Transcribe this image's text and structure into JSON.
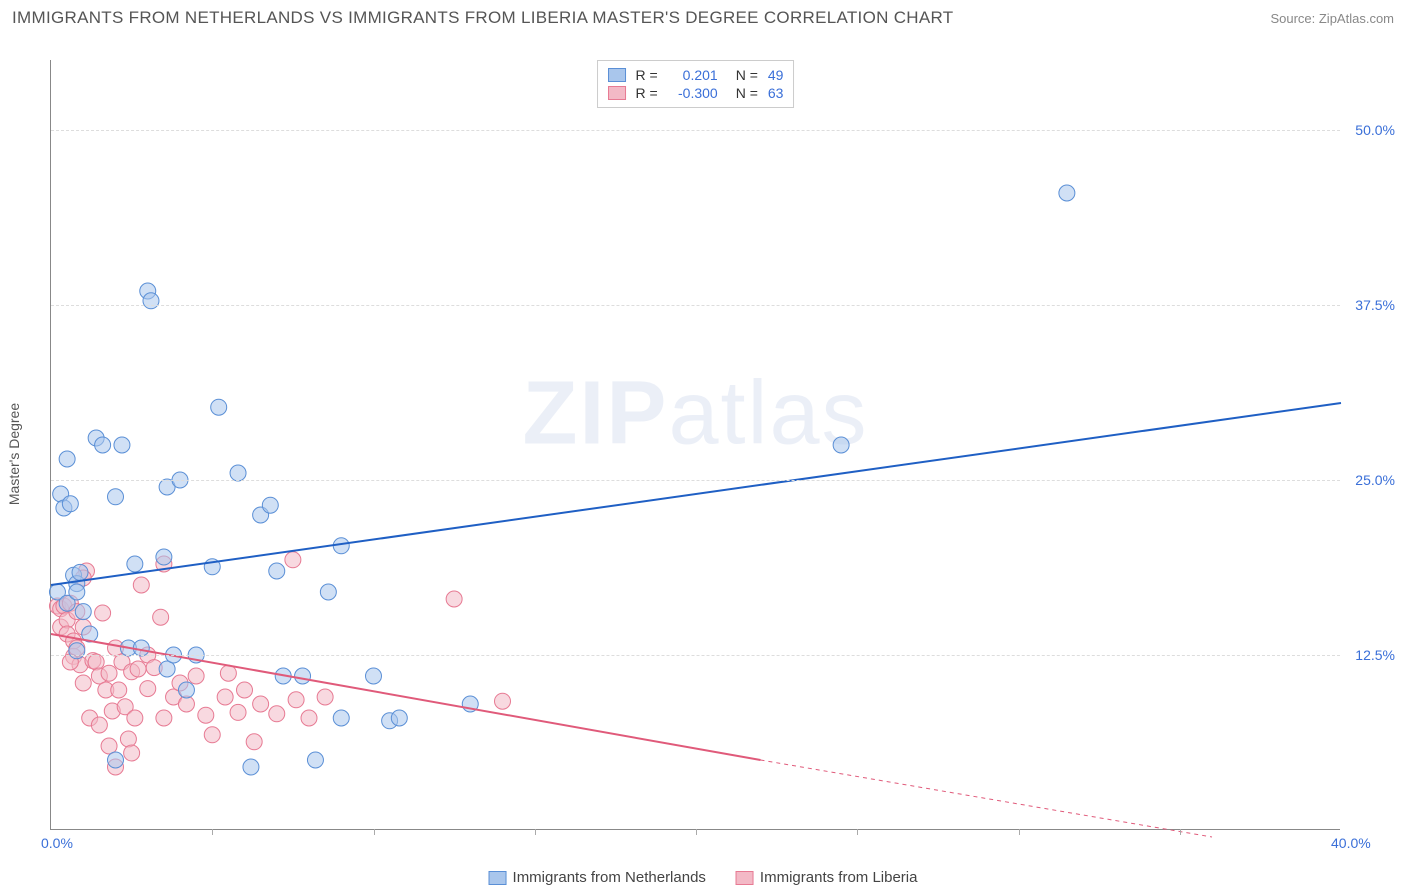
{
  "title": "IMMIGRANTS FROM NETHERLANDS VS IMMIGRANTS FROM LIBERIA MASTER'S DEGREE CORRELATION CHART",
  "source": "Source: ZipAtlas.com",
  "watermark_a": "ZIP",
  "watermark_b": "atlas",
  "ylabel": "Master's Degree",
  "chart": {
    "type": "scatter",
    "xlim": [
      0,
      40
    ],
    "ylim": [
      0,
      55
    ],
    "background_color": "#ffffff",
    "grid_color": "#dddddd",
    "axis_label_color": "#3a6fd8",
    "marker_radius": 8,
    "marker_opacity": 0.55,
    "line_width": 2,
    "xticks_labeled": [
      {
        "v": 0,
        "label": "0.0%"
      },
      {
        "v": 40,
        "label": "40.0%"
      }
    ],
    "xticks_minor": [
      5,
      10,
      15,
      20,
      25,
      30,
      35
    ],
    "yticks": [
      {
        "v": 12.5,
        "label": "12.5%"
      },
      {
        "v": 25,
        "label": "25.0%"
      },
      {
        "v": 37.5,
        "label": "37.5%"
      },
      {
        "v": 50,
        "label": "50.0%"
      }
    ],
    "series": {
      "netherlands": {
        "label": "Immigrants from Netherlands",
        "color_fill": "#a9c6ec",
        "color_stroke": "#5a8fd6",
        "line_color": "#1f5fc4",
        "R": "0.201",
        "N": "49",
        "points": [
          [
            0.2,
            17.0
          ],
          [
            0.3,
            24.0
          ],
          [
            0.4,
            23.0
          ],
          [
            0.5,
            26.5
          ],
          [
            0.5,
            16.2
          ],
          [
            0.6,
            23.3
          ],
          [
            0.7,
            18.2
          ],
          [
            0.8,
            17.6
          ],
          [
            0.8,
            17.0
          ],
          [
            0.9,
            18.4
          ],
          [
            1.0,
            15.6
          ],
          [
            1.2,
            14.0
          ],
          [
            1.4,
            28.0
          ],
          [
            1.6,
            27.5
          ],
          [
            2.0,
            23.8
          ],
          [
            2.2,
            27.5
          ],
          [
            2.4,
            13.0
          ],
          [
            2.6,
            19.0
          ],
          [
            2.8,
            13.0
          ],
          [
            3.0,
            38.5
          ],
          [
            3.1,
            37.8
          ],
          [
            3.5,
            19.5
          ],
          [
            3.6,
            24.5
          ],
          [
            3.6,
            11.5
          ],
          [
            3.8,
            12.5
          ],
          [
            4.0,
            25.0
          ],
          [
            4.2,
            10.0
          ],
          [
            4.5,
            12.5
          ],
          [
            5.0,
            18.8
          ],
          [
            5.2,
            30.2
          ],
          [
            5.8,
            25.5
          ],
          [
            6.2,
            4.5
          ],
          [
            6.5,
            22.5
          ],
          [
            6.8,
            23.2
          ],
          [
            7.0,
            18.5
          ],
          [
            7.2,
            11.0
          ],
          [
            7.8,
            11.0
          ],
          [
            8.2,
            5.0
          ],
          [
            8.6,
            17.0
          ],
          [
            9.0,
            8.0
          ],
          [
            9.0,
            20.3
          ],
          [
            10.5,
            7.8
          ],
          [
            10.8,
            8.0
          ],
          [
            10.0,
            11.0
          ],
          [
            13.0,
            9.0
          ],
          [
            24.5,
            27.5
          ],
          [
            31.5,
            45.5
          ],
          [
            2.0,
            5.0
          ],
          [
            0.8,
            12.8
          ]
        ],
        "trend": {
          "x1": 0,
          "y1": 17.5,
          "x2": 40,
          "y2": 30.5
        }
      },
      "liberia": {
        "label": "Immigrants from Liberia",
        "color_fill": "#f3b9c6",
        "color_stroke": "#e77a93",
        "line_color": "#e05a7a",
        "R": "-0.300",
        "N": "63",
        "points": [
          [
            0.2,
            16.0
          ],
          [
            0.3,
            15.8
          ],
          [
            0.3,
            14.5
          ],
          [
            0.4,
            16.0
          ],
          [
            0.5,
            15.0
          ],
          [
            0.5,
            14.0
          ],
          [
            0.6,
            16.2
          ],
          [
            0.7,
            13.5
          ],
          [
            0.7,
            12.4
          ],
          [
            0.8,
            15.6
          ],
          [
            0.8,
            13.0
          ],
          [
            0.9,
            11.8
          ],
          [
            1.0,
            14.5
          ],
          [
            1.0,
            10.5
          ],
          [
            1.1,
            18.5
          ],
          [
            1.2,
            8.0
          ],
          [
            1.3,
            12.1
          ],
          [
            1.4,
            12.0
          ],
          [
            1.5,
            11.0
          ],
          [
            1.5,
            7.5
          ],
          [
            1.6,
            15.5
          ],
          [
            1.7,
            10.0
          ],
          [
            1.8,
            11.2
          ],
          [
            1.8,
            6.0
          ],
          [
            1.9,
            8.5
          ],
          [
            2.0,
            13.0
          ],
          [
            2.0,
            4.5
          ],
          [
            2.1,
            10.0
          ],
          [
            2.2,
            12.0
          ],
          [
            2.3,
            8.8
          ],
          [
            2.4,
            6.5
          ],
          [
            2.5,
            11.3
          ],
          [
            2.6,
            8.0
          ],
          [
            2.7,
            11.5
          ],
          [
            2.8,
            17.5
          ],
          [
            3.0,
            10.1
          ],
          [
            3.0,
            12.5
          ],
          [
            3.2,
            11.6
          ],
          [
            3.4,
            15.2
          ],
          [
            3.5,
            19.0
          ],
          [
            3.5,
            8.0
          ],
          [
            3.8,
            9.5
          ],
          [
            4.0,
            10.5
          ],
          [
            4.2,
            9.0
          ],
          [
            4.5,
            11.0
          ],
          [
            4.8,
            8.2
          ],
          [
            5.0,
            6.8
          ],
          [
            5.4,
            9.5
          ],
          [
            5.5,
            11.2
          ],
          [
            5.8,
            8.4
          ],
          [
            6.0,
            10.0
          ],
          [
            6.3,
            6.3
          ],
          [
            6.5,
            9.0
          ],
          [
            7.0,
            8.3
          ],
          [
            7.5,
            19.3
          ],
          [
            7.6,
            9.3
          ],
          [
            8.0,
            8.0
          ],
          [
            8.5,
            9.5
          ],
          [
            12.5,
            16.5
          ],
          [
            14.0,
            9.2
          ],
          [
            1.0,
            18.0
          ],
          [
            0.6,
            12.0
          ],
          [
            2.5,
            5.5
          ]
        ],
        "trend_solid": {
          "x1": 0,
          "y1": 14.0,
          "x2": 22,
          "y2": 5.0
        },
        "trend_dashed": {
          "x1": 22,
          "y1": 5.0,
          "x2": 36,
          "y2": -0.5
        }
      }
    }
  },
  "legend_top": {
    "r_prefix": "R =",
    "n_prefix": "N ="
  }
}
